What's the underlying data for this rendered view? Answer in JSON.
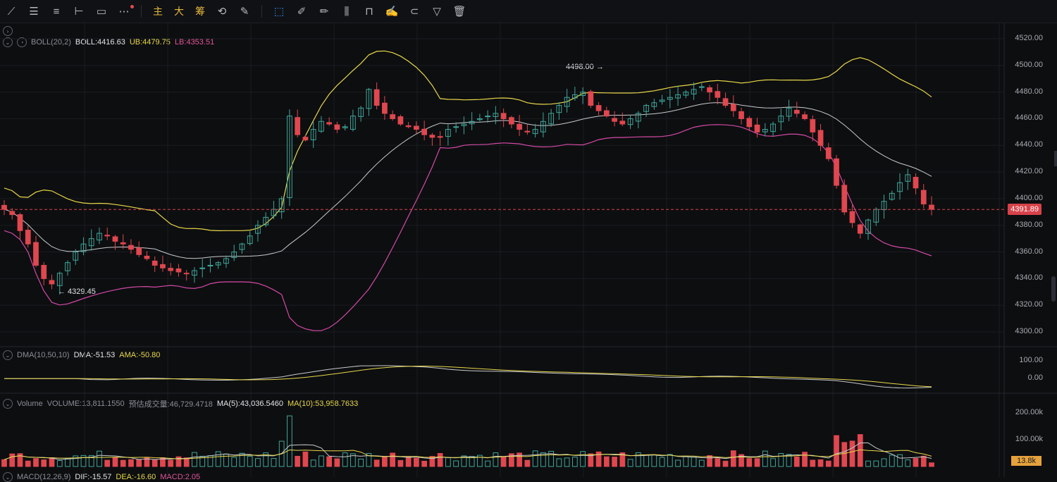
{
  "toolbar": {
    "items": [
      {
        "icon": "trend-line-icon",
        "glyph": "⟋"
      },
      {
        "icon": "horizontal-lines-icon",
        "glyph": "☰"
      },
      {
        "icon": "parallel-lines-icon",
        "glyph": "≡"
      },
      {
        "icon": "horizontal-ray-icon",
        "glyph": "⊢"
      },
      {
        "icon": "rectangle-icon",
        "glyph": "▭"
      },
      {
        "icon": "more-tools-icon",
        "glyph": "⋯"
      }
    ],
    "cn_labels": [
      "主",
      "大",
      "筹"
    ],
    "tools": [
      {
        "icon": "fib-icon",
        "glyph": "⟲"
      },
      {
        "icon": "measure-icon",
        "glyph": "✎"
      },
      {
        "icon": "cursor-select-icon",
        "glyph": "⬚"
      },
      {
        "icon": "ruler-icon",
        "glyph": "✐"
      },
      {
        "icon": "brush-icon",
        "glyph": "✏"
      },
      {
        "icon": "candles-icon",
        "glyph": "⫼"
      },
      {
        "icon": "lock-icon",
        "glyph": "⊓"
      },
      {
        "icon": "edit-note-icon",
        "glyph": "✍"
      },
      {
        "icon": "magnet-icon",
        "glyph": "⊂"
      },
      {
        "icon": "filter-icon",
        "glyph": "▽"
      },
      {
        "icon": "trash-icon",
        "glyph": "🗑"
      }
    ]
  },
  "boll": {
    "name": "BOLL(20,2)",
    "mid": "BOLL:4416.63",
    "ub": "UB:4479.75",
    "lb": "LB:4353.51"
  },
  "dma": {
    "name": "DMA(10,50,10)",
    "dma": "DMA:-51.53",
    "ama": "AMA:-50.80"
  },
  "volume": {
    "name": "Volume",
    "vol": "VOLUME:13,811.1550",
    "est": "预估成交量:46,729.4718",
    "ma5": "MA(5):43,036.5460",
    "ma10": "MA(10):53,958.7633"
  },
  "macd": {
    "name": "MACD(12,26,9)",
    "dif": "DIF:-15.57",
    "dea": "DEA:-16.60",
    "macd": "MACD:2.05"
  },
  "price_axis": [
    "4520.00",
    "4500.00",
    "4480.00",
    "4460.00",
    "4440.00",
    "4420.00",
    "4400.00",
    "4380.00",
    "4360.00",
    "4340.00",
    "4320.00",
    "4300.00"
  ],
  "dma_axis": [
    "100.00",
    "0.00"
  ],
  "vol_axis": [
    "200.00k",
    "100.00k"
  ],
  "last_price": "4391.89",
  "last_volume": "13.8k",
  "annotations": {
    "high": "4498.00 →",
    "low": "← 4329.45"
  },
  "colors": {
    "up": "#3fa69a",
    "down": "#e0474f",
    "ub": "#e7d84a",
    "mid": "#c8cacd",
    "lb": "#d44aa6",
    "dma": "#c8cacd",
    "ama": "#e7d84a"
  },
  "chart_data": {
    "type": "candlestick",
    "price_range": [
      4300,
      4520
    ],
    "last_price": 4391.89,
    "high_marker": 4498.0,
    "low_marker": 4329.45,
    "candles_close_approx": [
      4392,
      4388,
      4376,
      4366,
      4350,
      4340,
      4336,
      4344,
      4352,
      4360,
      4366,
      4370,
      4374,
      4372,
      4368,
      4366,
      4362,
      4358,
      4355,
      4350,
      4348,
      4346,
      4345,
      4344,
      4346,
      4348,
      4350,
      4352,
      4355,
      4360,
      4366,
      4372,
      4380,
      4386,
      4392,
      4400,
      4462,
      4448,
      4444,
      4452,
      4458,
      4456,
      4452,
      4454,
      4462,
      4468,
      4482,
      4470,
      4464,
      4460,
      4456,
      4454,
      4452,
      4448,
      4446,
      4446,
      4452,
      4454,
      4456,
      4458,
      4460,
      4462,
      4464,
      4460,
      4456,
      4452,
      4450,
      4452,
      4458,
      4464,
      4470,
      4476,
      4478,
      4480,
      4470,
      4466,
      4462,
      4458,
      4456,
      4460,
      4464,
      4470,
      4472,
      4474,
      4476,
      4478,
      4480,
      4482,
      4484,
      4480,
      4476,
      4470,
      4466,
      4460,
      4454,
      4450,
      4452,
      4456,
      4462,
      4468,
      4464,
      4460,
      4450,
      4440,
      4430,
      4410,
      4390,
      4382,
      4374,
      4384,
      4392,
      4398,
      4404,
      4412,
      4418,
      4408,
      4396,
      4392
    ],
    "boll_ub_last": 4479.75,
    "boll_mid_last": 4416.63,
    "boll_lb_last": 4353.51,
    "dma_last": -51.53,
    "ama_last": -50.8,
    "dma_range": [
      -60,
      130
    ],
    "volume_range": [
      0,
      230000
    ],
    "volume_last": 13811.155,
    "volume_ma5_last": 43036.546,
    "volume_ma10_last": 53958.7633,
    "volume_est": 46729.4718
  }
}
